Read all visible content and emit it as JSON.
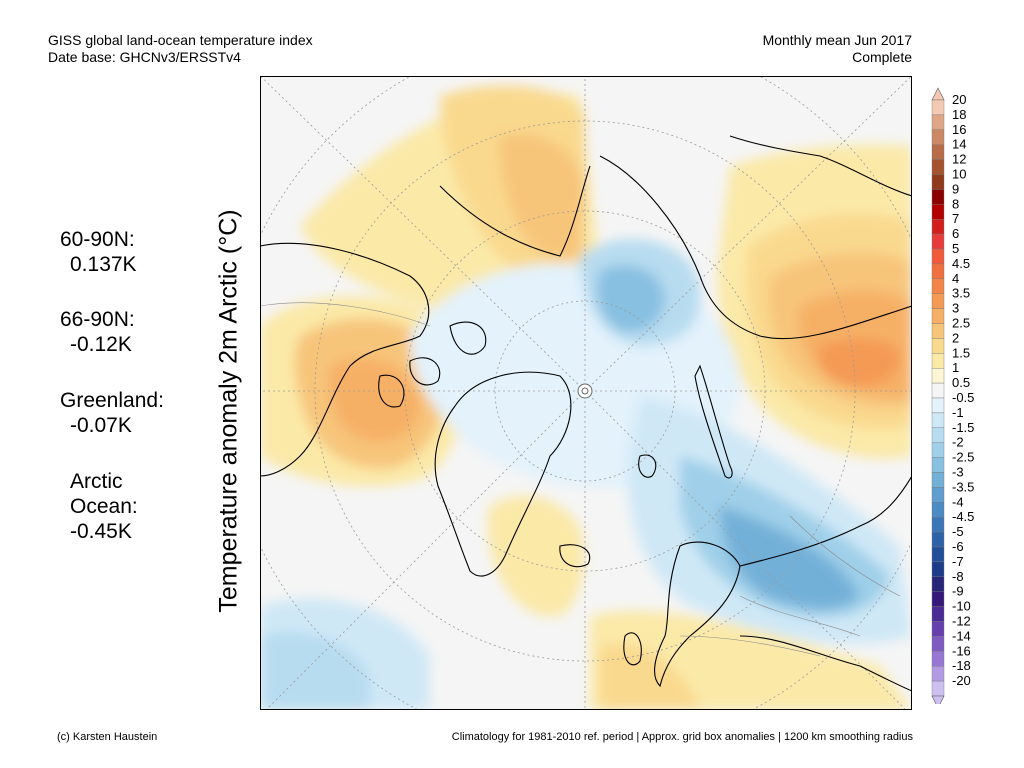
{
  "header": {
    "title": "GISS global land-ocean temperature index",
    "subtitle": "Date base: GHCNv3/ERSSTv4",
    "period": "Monthly mean Jun 2017",
    "status": "Complete"
  },
  "stats": [
    {
      "label": "60-90N:",
      "value": "0.137K"
    },
    {
      "label": "66-90N:",
      "value": "-0.12K"
    },
    {
      "label": "Greenland:",
      "value": "-0.07K"
    },
    {
      "label": "Arctic",
      "label2": "Ocean:",
      "value": "-0.45K"
    }
  ],
  "axis_label": "Temperature anomaly 2m Arctic (°C)",
  "colorbar": {
    "labels": [
      "20",
      "18",
      "16",
      "14",
      "12",
      "10",
      "9",
      "8",
      "7",
      "6",
      "5",
      "4.5",
      "4",
      "3.5",
      "3",
      "2.5",
      "2",
      "1.5",
      "1",
      "0.5",
      "-0.5",
      "-1",
      "-1.5",
      "-2",
      "-2.5",
      "-3",
      "-3.5",
      "-4",
      "-4.5",
      "-5",
      "-6",
      "-7",
      "-8",
      "-9",
      "-10",
      "-12",
      "-14",
      "-16",
      "-18",
      "-20"
    ],
    "colors": [
      "#f4c9b3",
      "#dfa587",
      "#cb8864",
      "#b86c47",
      "#a5532f",
      "#8f3b1b",
      "#8b0000",
      "#b20000",
      "#d31e1e",
      "#e83c3c",
      "#f25a3c",
      "#f1703f",
      "#f28548",
      "#f49a55",
      "#f6b066",
      "#f7c57a",
      "#f9d98e",
      "#fbe9a8",
      "#fdf5d3",
      "#f5f5f5",
      "#e3f2fb",
      "#cfe8f6",
      "#b7dcf0",
      "#9fcfe9",
      "#88c0e1",
      "#73b0d8",
      "#5f9ecf",
      "#4c8bc4",
      "#3b77b8",
      "#2d62a9",
      "#224e99",
      "#1c3c89",
      "#27257a",
      "#34187a",
      "#4a2a94",
      "#6540ad",
      "#7d5bc2",
      "#9777d4",
      "#b29be3",
      "#cdc0f0"
    ]
  },
  "footer": {
    "left": "(c) Karsten Haustein",
    "right": "Climatology for 1981-2010 ref. period | Approx. grid box anomalies | 1200 km smoothing radius"
  }
}
